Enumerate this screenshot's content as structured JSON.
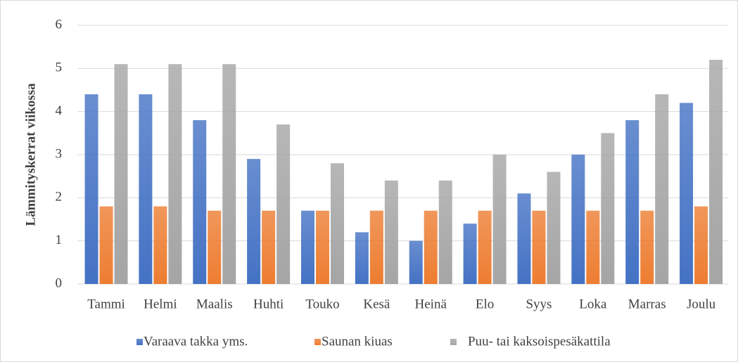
{
  "chart_data": {
    "type": "bar",
    "ylabel": "Lämmityskerrat viikossa",
    "categories": [
      "Tammi",
      "Helmi",
      "Maalis",
      "Huhti",
      "Touko",
      "Kesä",
      "Heinä",
      "Elo",
      "Syys",
      "Loka",
      "Marras",
      "Joulu"
    ],
    "series": [
      {
        "name": "Varaava takka yms.",
        "color": "#4472c4",
        "values": [
          4.4,
          4.4,
          3.8,
          2.9,
          1.7,
          1.2,
          1.0,
          1.4,
          2.1,
          3.0,
          3.8,
          4.2
        ]
      },
      {
        "name": "Saunan kiuas",
        "color": "#ed7d31",
        "values": [
          1.8,
          1.8,
          1.7,
          1.7,
          1.7,
          1.7,
          1.7,
          1.7,
          1.7,
          1.7,
          1.7,
          1.8
        ]
      },
      {
        "name": "Puu- tai kaksoispesäkattila",
        "color": "#a5a5a5",
        "values": [
          5.1,
          5.1,
          5.1,
          3.7,
          2.8,
          2.4,
          2.4,
          3.0,
          2.6,
          3.5,
          4.4,
          5.2
        ]
      }
    ],
    "ylim": [
      0,
      6
    ],
    "yticks": [
      0,
      1,
      2,
      3,
      4,
      5,
      6
    ],
    "grid": true,
    "legend": "bottom"
  }
}
